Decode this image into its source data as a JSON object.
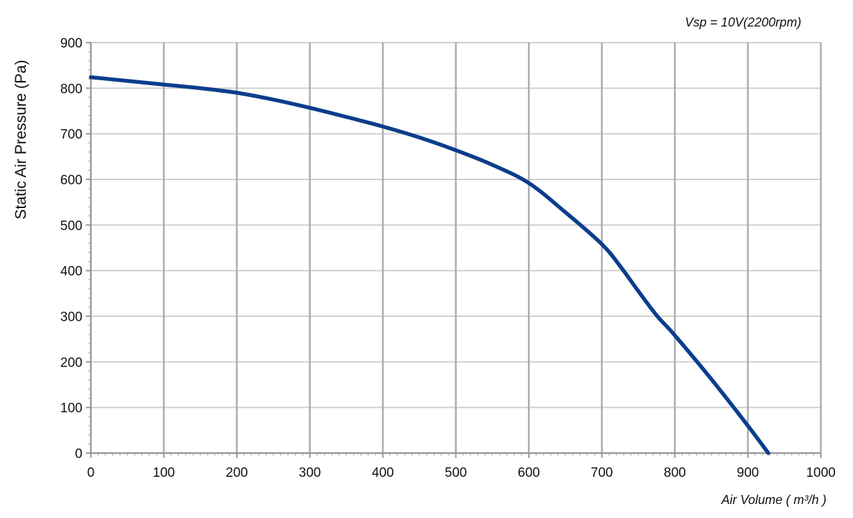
{
  "chart_data": {
    "type": "line",
    "annotation": "Vsp = 10V(2200rpm)",
    "xlabel": "Air Volume ( m³/h )",
    "ylabel": "Static Air Pressure  (Pa)",
    "xlim": [
      0,
      1000
    ],
    "ylim": [
      0,
      900
    ],
    "xticks": [
      0,
      100,
      200,
      300,
      400,
      500,
      600,
      700,
      800,
      900,
      1000
    ],
    "yticks": [
      0,
      100,
      200,
      300,
      400,
      500,
      600,
      700,
      800,
      900
    ],
    "grid": true,
    "series": [
      {
        "color": "#0b3d8c",
        "x": [
          0,
          50,
          100,
          150,
          200,
          250,
          300,
          350,
          400,
          450,
          500,
          550,
          600,
          650,
          700,
          725,
          750,
          775,
          800,
          850,
          900,
          928
        ],
        "y": [
          824,
          816,
          808,
          800,
          790,
          775,
          757,
          737,
          716,
          692,
          664,
          632,
          592,
          528,
          458,
          410,
          355,
          302,
          258,
          162,
          60,
          0
        ]
      }
    ]
  }
}
